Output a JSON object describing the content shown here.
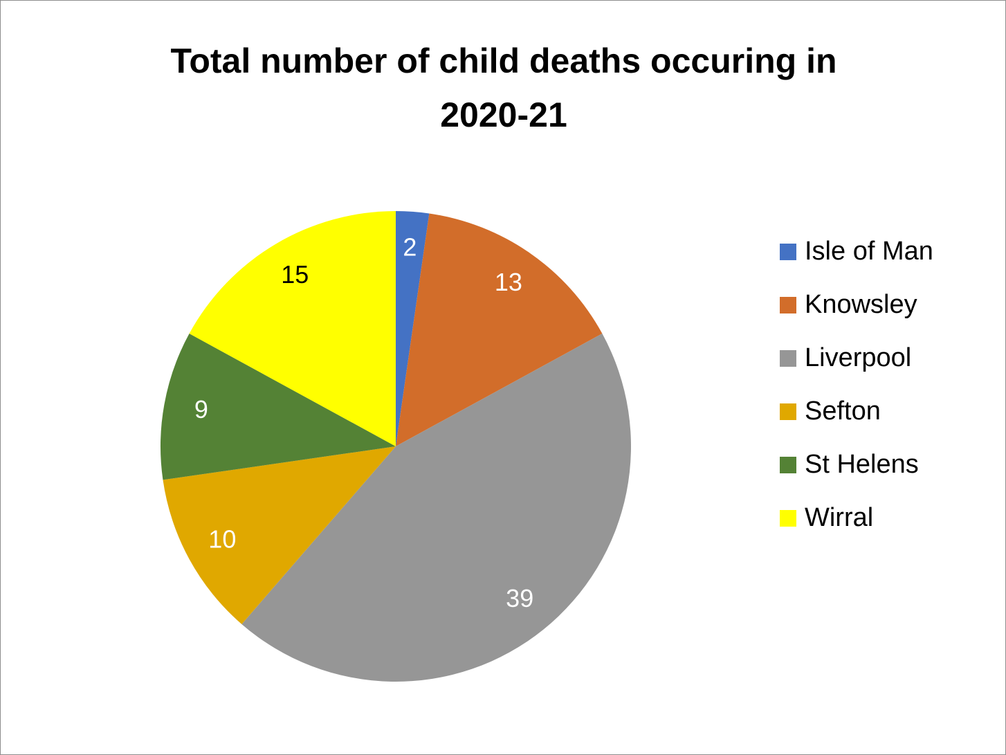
{
  "chart_data": {
    "type": "pie",
    "title": "Total number of child deaths occuring in 2020-21",
    "categories": [
      "Isle of Man",
      "Knowsley",
      "Liverpool",
      "Sefton",
      "St Helens",
      "Wirral"
    ],
    "values": [
      2,
      13,
      39,
      10,
      9,
      15
    ],
    "colors": [
      "#4472c4",
      "#d26d2a",
      "#969696",
      "#e0a800",
      "#548235",
      "#ffff00"
    ],
    "legend": "right"
  }
}
